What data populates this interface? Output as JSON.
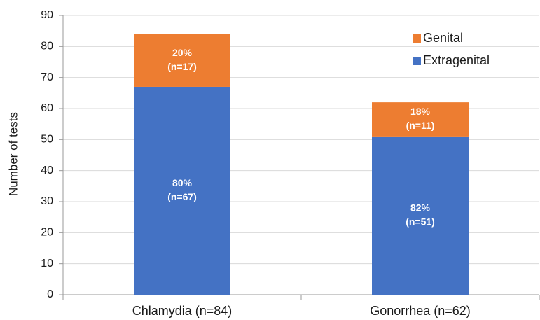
{
  "chart_data": {
    "type": "stacked_bar",
    "y_label": "Number of tests",
    "categories": [
      "Chlamydia (n=84)",
      "Gonorrhea (n=62)"
    ],
    "series": [
      {
        "name": "Extragenital",
        "color": "#4472c4",
        "values": [
          67,
          51
        ],
        "value_labels": [
          [
            "80%",
            "(n=67)"
          ],
          [
            "82%",
            "(n=51)"
          ]
        ]
      },
      {
        "name": "Genital",
        "color": "#ed7d31",
        "values": [
          17,
          11
        ],
        "value_labels": [
          [
            "20%",
            "(n=17)"
          ],
          [
            "18%",
            "(n=11)"
          ]
        ]
      }
    ],
    "ylim": [
      0,
      90
    ],
    "yticks": [
      0,
      10,
      20,
      30,
      40,
      50,
      60,
      70,
      80,
      90
    ],
    "grid": true,
    "legend": "upper right"
  }
}
